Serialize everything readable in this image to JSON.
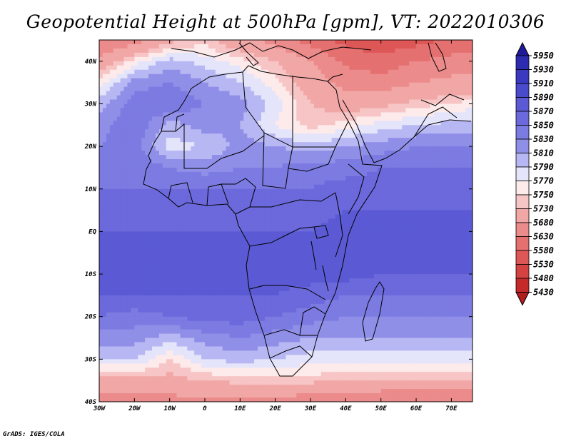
{
  "title": "Geopotential Height at 500hPa [gpm], VT: 2022010306",
  "credit": "GrADS: IGES/COLA",
  "map": {
    "region": "Africa",
    "projection": "latlon",
    "lon_range": [
      -30,
      76
    ],
    "lat_range": [
      -40,
      45
    ],
    "lon_ticks": [
      {
        "value": -30,
        "label": "30W"
      },
      {
        "value": -20,
        "label": "20W"
      },
      {
        "value": -10,
        "label": "10W"
      },
      {
        "value": 0,
        "label": "0"
      },
      {
        "value": 10,
        "label": "10E"
      },
      {
        "value": 20,
        "label": "20E"
      },
      {
        "value": 30,
        "label": "30E"
      },
      {
        "value": 40,
        "label": "40E"
      },
      {
        "value": 50,
        "label": "50E"
      },
      {
        "value": 60,
        "label": "60E"
      },
      {
        "value": 70,
        "label": "70E"
      }
    ],
    "lat_ticks": [
      {
        "value": 40,
        "label": "40N"
      },
      {
        "value": 30,
        "label": "30N"
      },
      {
        "value": 20,
        "label": "20N"
      },
      {
        "value": 10,
        "label": "10N"
      },
      {
        "value": 0,
        "label": "EQ"
      },
      {
        "value": -10,
        "label": "10S"
      },
      {
        "value": -20,
        "label": "20S"
      },
      {
        "value": -30,
        "label": "30S"
      },
      {
        "value": -40,
        "label": "40S"
      }
    ]
  },
  "colorbar": {
    "levels": [
      {
        "label": "5950",
        "color": "#1f1a9a"
      },
      {
        "label": "5930",
        "color": "#2d2bb0"
      },
      {
        "label": "5910",
        "color": "#3a39c0"
      },
      {
        "label": "5890",
        "color": "#4a4acc"
      },
      {
        "label": "5870",
        "color": "#5b5ad4"
      },
      {
        "label": "5850",
        "color": "#6b69db"
      },
      {
        "label": "5830",
        "color": "#7c7be2"
      },
      {
        "label": "5810",
        "color": "#908fe8"
      },
      {
        "label": "5790",
        "color": "#b7b8f3"
      },
      {
        "label": "5770",
        "color": "#e4e4fb"
      },
      {
        "label": "5750",
        "color": "#fdeaea"
      },
      {
        "label": "5730",
        "color": "#f7c5c5"
      },
      {
        "label": "5680",
        "color": "#f2a7a7"
      },
      {
        "label": "5630",
        "color": "#ec8b8b"
      },
      {
        "label": "5580",
        "color": "#e57070"
      },
      {
        "label": "5530",
        "color": "#de5757"
      },
      {
        "label": "5480",
        "color": "#d44242"
      },
      {
        "label": "5430",
        "color": "#c42a2a"
      }
    ],
    "bottom_color": "#b01e1e"
  },
  "field": {
    "lat_grid": [
      45,
      40,
      35,
      30,
      25,
      20,
      15,
      10,
      5,
      0,
      -5,
      -10,
      -15,
      -20,
      -25,
      -30,
      -35,
      -40
    ],
    "lon_grid": [
      -30,
      -20,
      -10,
      0,
      10,
      20,
      30,
      40,
      50,
      60,
      76
    ],
    "heights": [
      [
        5620,
        5660,
        5720,
        5740,
        5700,
        5660,
        5610,
        5560,
        5540,
        5560,
        5600
      ],
      [
        5700,
        5760,
        5800,
        5780,
        5760,
        5730,
        5680,
        5620,
        5600,
        5630,
        5660
      ],
      [
        5760,
        5820,
        5830,
        5810,
        5790,
        5760,
        5710,
        5660,
        5650,
        5680,
        5700
      ],
      [
        5800,
        5840,
        5850,
        5830,
        5820,
        5780,
        5730,
        5710,
        5720,
        5740,
        5760
      ],
      [
        5820,
        5850,
        5800,
        5820,
        5810,
        5770,
        5740,
        5760,
        5780,
        5790,
        5800
      ],
      [
        5830,
        5840,
        5780,
        5790,
        5820,
        5810,
        5800,
        5810,
        5820,
        5830,
        5830
      ],
      [
        5840,
        5850,
        5830,
        5820,
        5830,
        5830,
        5840,
        5840,
        5850,
        5850,
        5850
      ],
      [
        5850,
        5850,
        5850,
        5850,
        5850,
        5850,
        5850,
        5860,
        5860,
        5860,
        5860
      ],
      [
        5860,
        5860,
        5860,
        5860,
        5860,
        5860,
        5860,
        5870,
        5870,
        5870,
        5870
      ],
      [
        5870,
        5870,
        5870,
        5870,
        5870,
        5870,
        5870,
        5880,
        5880,
        5880,
        5880
      ],
      [
        5880,
        5880,
        5880,
        5880,
        5880,
        5880,
        5880,
        5880,
        5880,
        5880,
        5870
      ],
      [
        5880,
        5880,
        5880,
        5880,
        5880,
        5880,
        5880,
        5880,
        5870,
        5870,
        5870
      ],
      [
        5870,
        5870,
        5870,
        5870,
        5870,
        5870,
        5860,
        5850,
        5850,
        5850,
        5850
      ],
      [
        5850,
        5840,
        5850,
        5860,
        5860,
        5850,
        5840,
        5830,
        5830,
        5830,
        5830
      ],
      [
        5820,
        5820,
        5800,
        5820,
        5830,
        5820,
        5810,
        5810,
        5810,
        5810,
        5810
      ],
      [
        5790,
        5790,
        5750,
        5790,
        5800,
        5790,
        5780,
        5780,
        5780,
        5780,
        5780
      ],
      [
        5720,
        5720,
        5720,
        5730,
        5740,
        5740,
        5740,
        5730,
        5730,
        5730,
        5730
      ],
      [
        5640,
        5650,
        5660,
        5670,
        5670,
        5660,
        5650,
        5640,
        5630,
        5620,
        5620
      ]
    ]
  }
}
